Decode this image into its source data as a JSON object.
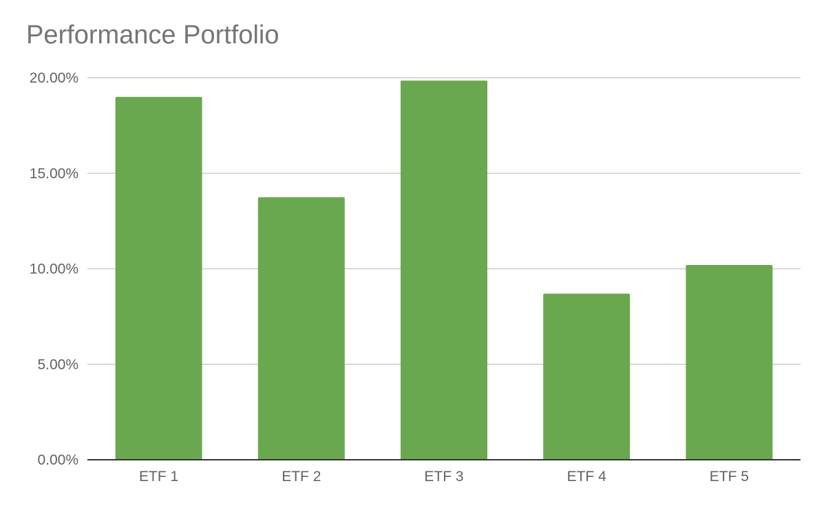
{
  "chart_data": {
    "type": "bar",
    "title": "Performance Portfolio",
    "categories": [
      "ETF 1",
      "ETF 2",
      "ETF 3",
      "ETF 4",
      "ETF 5"
    ],
    "values": [
      0.19,
      0.1375,
      0.1985,
      0.087,
      0.102
    ],
    "ylim": [
      0,
      0.2
    ],
    "yticks": [
      0,
      0.05,
      0.1,
      0.15,
      0.2
    ],
    "ytick_labels": [
      "0.00%",
      "5.00%",
      "10.00%",
      "15.00%",
      "20.00%"
    ],
    "xlabel": "",
    "ylabel": "",
    "grid": true,
    "legend": "none",
    "bar_color": "#6aa84f"
  }
}
